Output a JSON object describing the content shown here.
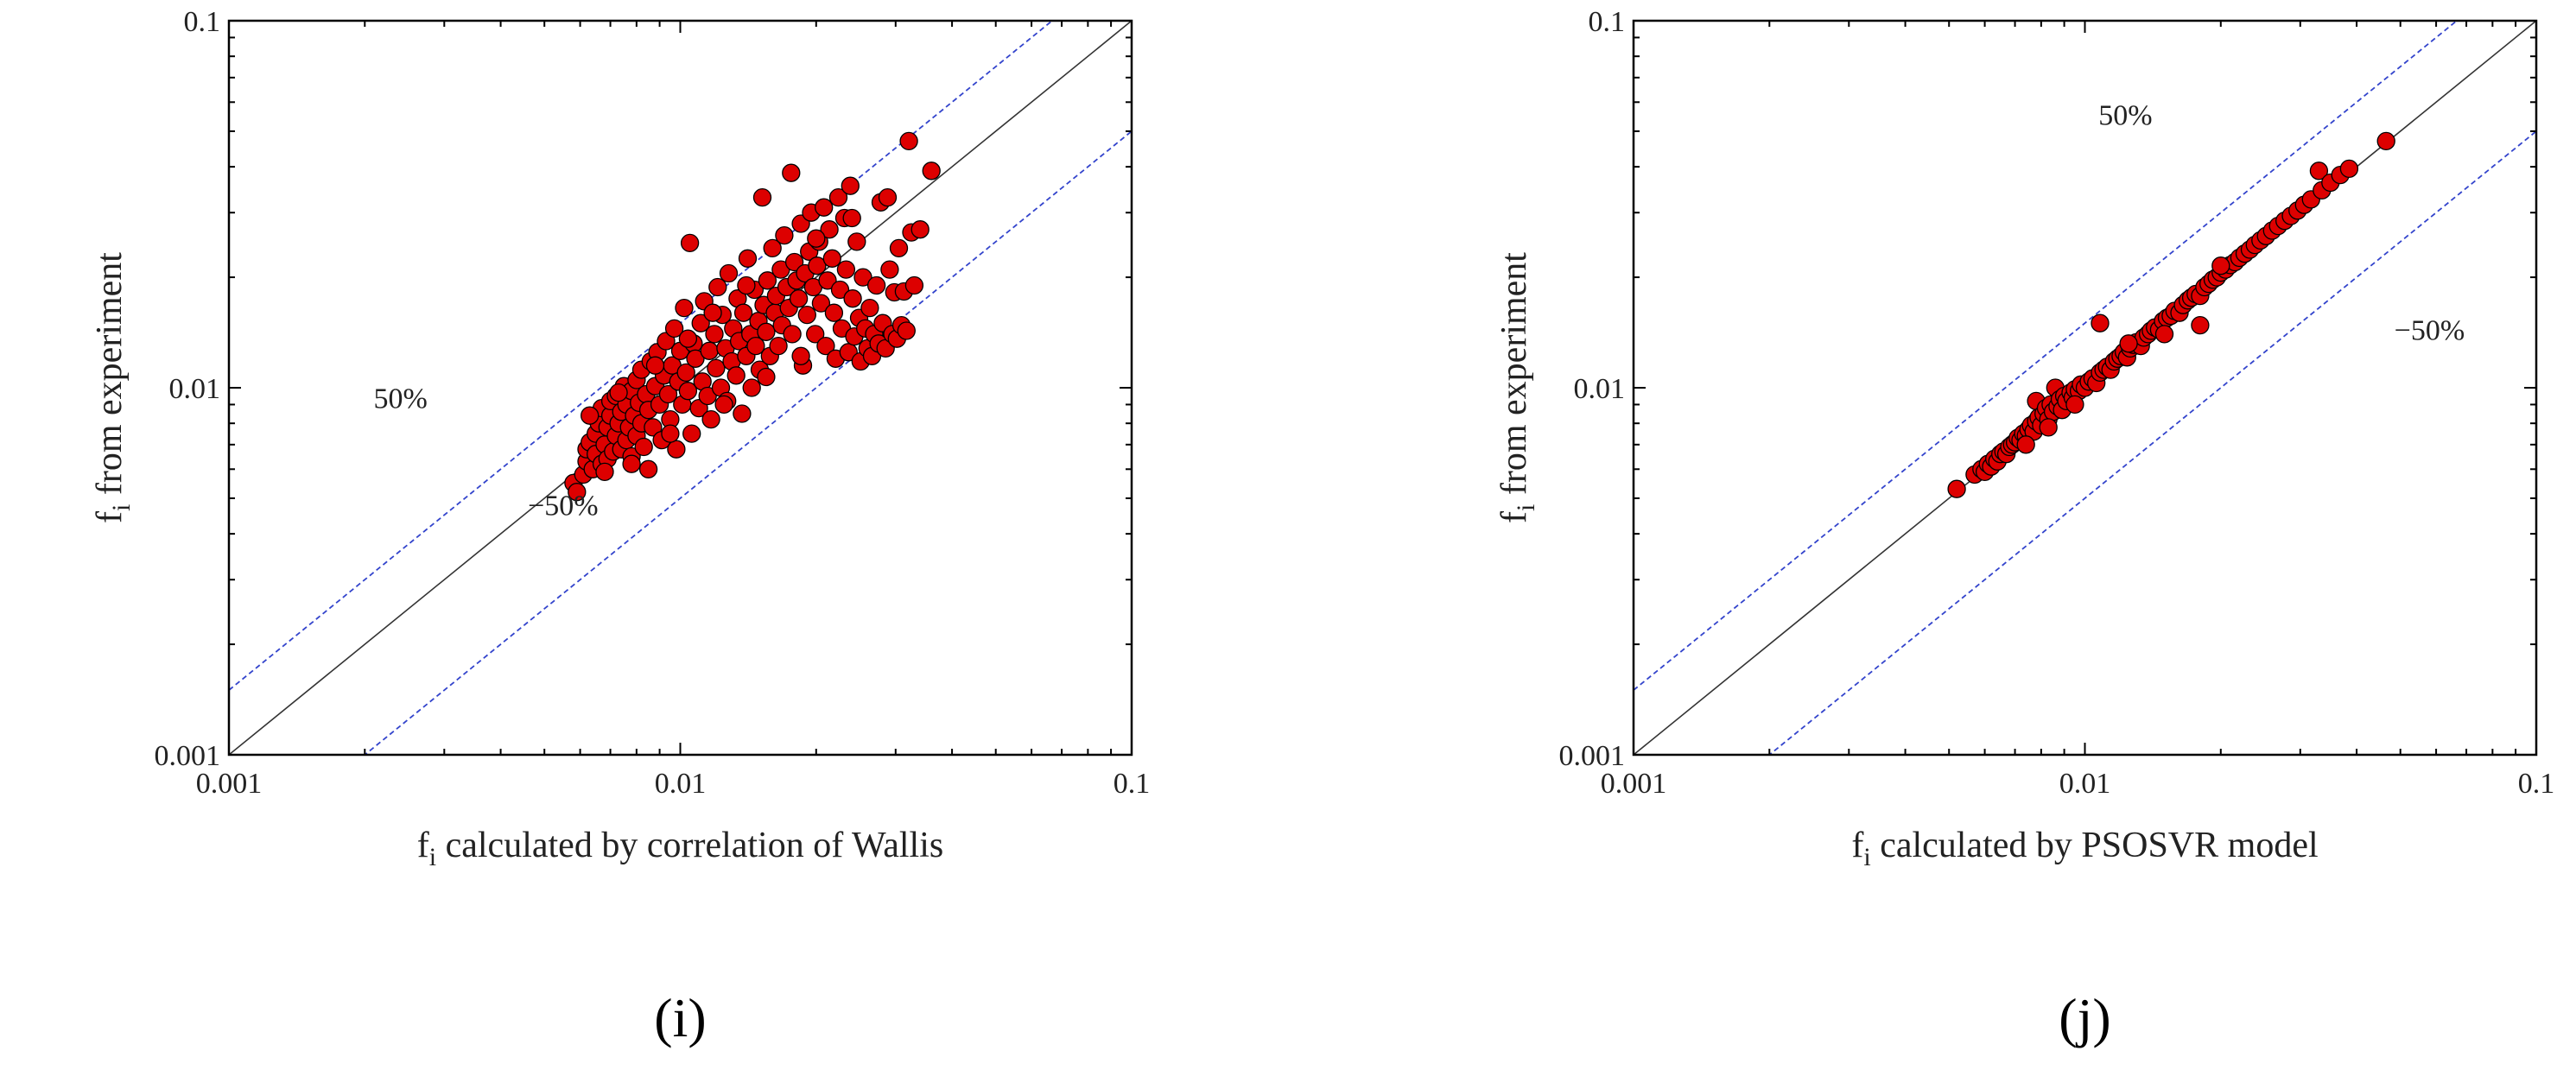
{
  "chart_data": [
    {
      "type": "scatter",
      "panel_label": "(i)",
      "xlabel": {
        "main": "f",
        "sub": "i",
        "rest": " calculated by correlation of Wallis"
      },
      "ylabel": {
        "main": "f",
        "sub": "i",
        "rest": " from experiment"
      },
      "x_scale": "log",
      "y_scale": "log",
      "xlim": [
        0.001,
        0.1
      ],
      "ylim": [
        0.001,
        0.1
      ],
      "x_ticks": [
        "0.001",
        "0.01",
        "0.1"
      ],
      "y_ticks": [
        "0.001",
        "0.01",
        "0.1"
      ],
      "annotations": [
        {
          "text": "50%",
          "x": 0.0024,
          "y": 0.0088
        },
        {
          "text": "−50%",
          "x": 0.0055,
          "y": 0.0045
        }
      ],
      "reference_lines": [
        {
          "name": "y = x",
          "factor": 1.0,
          "color": "#333333",
          "style": "solid"
        },
        {
          "name": "+50%",
          "factor": 1.5,
          "color": "#3344cc",
          "style": "dashed"
        },
        {
          "name": "−50%",
          "factor": 0.5,
          "color": "#3344cc",
          "style": "dashed"
        }
      ],
      "marker_color": "#dd0000",
      "points": [
        [
          0.0058,
          0.0055
        ],
        [
          0.0059,
          0.0052
        ],
        [
          0.0061,
          0.0058
        ],
        [
          0.0062,
          0.0063
        ],
        [
          0.0062,
          0.0068
        ],
        [
          0.0063,
          0.0071
        ],
        [
          0.0064,
          0.006
        ],
        [
          0.0065,
          0.0066
        ],
        [
          0.0065,
          0.0075
        ],
        [
          0.0066,
          0.008
        ],
        [
          0.0067,
          0.0062
        ],
        [
          0.0067,
          0.0088
        ],
        [
          0.0068,
          0.007
        ],
        [
          0.0069,
          0.0064
        ],
        [
          0.0069,
          0.0078
        ],
        [
          0.007,
          0.0084
        ],
        [
          0.007,
          0.0092
        ],
        [
          0.0071,
          0.0067
        ],
        [
          0.0072,
          0.0074
        ],
        [
          0.0072,
          0.0095
        ],
        [
          0.0073,
          0.008
        ],
        [
          0.0074,
          0.0086
        ],
        [
          0.0074,
          0.0068
        ],
        [
          0.0075,
          0.0101
        ],
        [
          0.0076,
          0.0072
        ],
        [
          0.0076,
          0.009
        ],
        [
          0.0077,
          0.0078
        ],
        [
          0.0078,
          0.0098
        ],
        [
          0.0078,
          0.0065
        ],
        [
          0.0079,
          0.0084
        ],
        [
          0.008,
          0.0105
        ],
        [
          0.008,
          0.0074
        ],
        [
          0.0081,
          0.0091
        ],
        [
          0.0082,
          0.008
        ],
        [
          0.0082,
          0.0112
        ],
        [
          0.0083,
          0.0069
        ],
        [
          0.0084,
          0.0096
        ],
        [
          0.0085,
          0.0087
        ],
        [
          0.0085,
          0.006
        ],
        [
          0.0086,
          0.0118
        ],
        [
          0.0087,
          0.0078
        ],
        [
          0.0088,
          0.0101
        ],
        [
          0.0089,
          0.0125
        ],
        [
          0.009,
          0.009
        ],
        [
          0.0091,
          0.0072
        ],
        [
          0.0092,
          0.0108
        ],
        [
          0.0093,
          0.0134
        ],
        [
          0.0094,
          0.0096
        ],
        [
          0.0095,
          0.0082
        ],
        [
          0.0096,
          0.0115
        ],
        [
          0.0097,
          0.0145
        ],
        [
          0.0098,
          0.0068
        ],
        [
          0.0099,
          0.0104
        ],
        [
          0.01,
          0.0126
        ],
        [
          0.0101,
          0.009
        ],
        [
          0.0102,
          0.0165
        ],
        [
          0.0103,
          0.011
        ],
        [
          0.0104,
          0.0098
        ],
        [
          0.0105,
          0.0248
        ],
        [
          0.0106,
          0.0075
        ],
        [
          0.0107,
          0.0132
        ],
        [
          0.0108,
          0.012
        ],
        [
          0.011,
          0.0088
        ],
        [
          0.0111,
          0.015
        ],
        [
          0.0112,
          0.0104
        ],
        [
          0.0113,
          0.0172
        ],
        [
          0.0115,
          0.0095
        ],
        [
          0.0116,
          0.0126
        ],
        [
          0.0117,
          0.0082
        ],
        [
          0.0119,
          0.014
        ],
        [
          0.012,
          0.0113
        ],
        [
          0.0121,
          0.0188
        ],
        [
          0.0123,
          0.01
        ],
        [
          0.0124,
          0.0158
        ],
        [
          0.0126,
          0.0128
        ],
        [
          0.0127,
          0.0092
        ],
        [
          0.0128,
          0.0205
        ],
        [
          0.013,
          0.0118
        ],
        [
          0.0131,
          0.0145
        ],
        [
          0.0133,
          0.0108
        ],
        [
          0.0134,
          0.0175
        ],
        [
          0.0135,
          0.0134
        ],
        [
          0.0137,
          0.0085
        ],
        [
          0.0138,
          0.016
        ],
        [
          0.014,
          0.0122
        ],
        [
          0.0141,
          0.0225
        ],
        [
          0.0143,
          0.014
        ],
        [
          0.0144,
          0.01
        ],
        [
          0.0146,
          0.0185
        ],
        [
          0.0147,
          0.013
        ],
        [
          0.0149,
          0.0152
        ],
        [
          0.015,
          0.0112
        ],
        [
          0.0152,
          0.033
        ],
        [
          0.0153,
          0.0168
        ],
        [
          0.0155,
          0.0142
        ],
        [
          0.0156,
          0.0196
        ],
        [
          0.0158,
          0.0122
        ],
        [
          0.016,
          0.024
        ],
        [
          0.0162,
          0.016
        ],
        [
          0.0163,
          0.0178
        ],
        [
          0.0165,
          0.013
        ],
        [
          0.0167,
          0.021
        ],
        [
          0.0168,
          0.0148
        ],
        [
          0.017,
          0.026
        ],
        [
          0.0172,
          0.0188
        ],
        [
          0.0174,
          0.0165
        ],
        [
          0.0176,
          0.0385
        ],
        [
          0.0177,
          0.014
        ],
        [
          0.0179,
          0.022
        ],
        [
          0.0181,
          0.0196
        ],
        [
          0.0183,
          0.0175
        ],
        [
          0.0185,
          0.028
        ],
        [
          0.0187,
          0.0115
        ],
        [
          0.0189,
          0.0205
        ],
        [
          0.0191,
          0.0158
        ],
        [
          0.0193,
          0.0235
        ],
        [
          0.0195,
          0.03
        ],
        [
          0.0197,
          0.0188
        ],
        [
          0.0199,
          0.014
        ],
        [
          0.0201,
          0.0215
        ],
        [
          0.0203,
          0.025
        ],
        [
          0.0205,
          0.017
        ],
        [
          0.0208,
          0.031
        ],
        [
          0.021,
          0.013
        ],
        [
          0.0212,
          0.0196
        ],
        [
          0.0214,
          0.027
        ],
        [
          0.0217,
          0.0225
        ],
        [
          0.0219,
          0.016
        ],
        [
          0.0221,
          0.012
        ],
        [
          0.0224,
          0.033
        ],
        [
          0.0226,
          0.0185
        ],
        [
          0.0228,
          0.0145
        ],
        [
          0.0231,
          0.029
        ],
        [
          0.0233,
          0.021
        ],
        [
          0.0236,
          0.0125
        ],
        [
          0.0238,
          0.0355
        ],
        [
          0.0241,
          0.0175
        ],
        [
          0.0243,
          0.0138
        ],
        [
          0.0246,
          0.025
        ],
        [
          0.0249,
          0.0155
        ],
        [
          0.0251,
          0.0118
        ],
        [
          0.0254,
          0.02
        ],
        [
          0.0257,
          0.0145
        ],
        [
          0.026,
          0.0128
        ],
        [
          0.0263,
          0.0165
        ],
        [
          0.0266,
          0.0122
        ],
        [
          0.0269,
          0.014
        ],
        [
          0.0272,
          0.019
        ],
        [
          0.0275,
          0.0132
        ],
        [
          0.0278,
          0.032
        ],
        [
          0.0281,
          0.015
        ],
        [
          0.0285,
          0.0128
        ],
        [
          0.0288,
          0.033
        ],
        [
          0.0291,
          0.021
        ],
        [
          0.0295,
          0.014
        ],
        [
          0.0298,
          0.0182
        ],
        [
          0.0302,
          0.0136
        ],
        [
          0.0305,
          0.024
        ],
        [
          0.0309,
          0.0148
        ],
        [
          0.0313,
          0.0183
        ],
        [
          0.0317,
          0.0143
        ],
        [
          0.0321,
          0.047
        ],
        [
          0.0325,
          0.0265
        ],
        [
          0.033,
          0.019
        ],
        [
          0.034,
          0.027
        ],
        [
          0.036,
          0.039
        ],
        [
          0.0155,
          0.0107
        ],
        [
          0.0185,
          0.0122
        ],
        [
          0.0125,
          0.009
        ],
        [
          0.0095,
          0.0075
        ],
        [
          0.0078,
          0.0062
        ],
        [
          0.0068,
          0.0059
        ],
        [
          0.014,
          0.019
        ],
        [
          0.0118,
          0.016
        ],
        [
          0.02,
          0.0255
        ],
        [
          0.024,
          0.029
        ],
        [
          0.0104,
          0.0136
        ],
        [
          0.0088,
          0.0115
        ],
        [
          0.0073,
          0.0097
        ],
        [
          0.0063,
          0.0084
        ]
      ]
    },
    {
      "type": "scatter",
      "panel_label": "(j)",
      "xlabel": {
        "main": "f",
        "sub": "i",
        "rest": " calculated by PSOSVR model"
      },
      "ylabel": {
        "main": "f",
        "sub": "i",
        "rest": " from experiment"
      },
      "x_scale": "log",
      "y_scale": "log",
      "xlim": [
        0.001,
        0.1
      ],
      "ylim": [
        0.001,
        0.1
      ],
      "x_ticks": [
        "0.001",
        "0.01",
        "0.1"
      ],
      "y_ticks": [
        "0.001",
        "0.01",
        "0.1"
      ],
      "annotations": [
        {
          "text": "50%",
          "x": 0.0123,
          "y": 0.052
        },
        {
          "text": "−50%",
          "x": 0.058,
          "y": 0.0135
        }
      ],
      "reference_lines": [
        {
          "name": "y = x",
          "factor": 1.0,
          "color": "#333333",
          "style": "solid"
        },
        {
          "name": "+50%",
          "factor": 1.5,
          "color": "#3344cc",
          "style": "dashed"
        },
        {
          "name": "−50%",
          "factor": 0.5,
          "color": "#3344cc",
          "style": "dashed"
        }
      ],
      "marker_color": "#dd0000",
      "points": [
        [
          0.0052,
          0.0053
        ],
        [
          0.0057,
          0.0058
        ],
        [
          0.0059,
          0.006
        ],
        [
          0.006,
          0.0059
        ],
        [
          0.0061,
          0.0062
        ],
        [
          0.0062,
          0.0061
        ],
        [
          0.0063,
          0.0064
        ],
        [
          0.0064,
          0.0063
        ],
        [
          0.0065,
          0.0066
        ],
        [
          0.0066,
          0.0067
        ],
        [
          0.0067,
          0.0066
        ],
        [
          0.0068,
          0.0069
        ],
        [
          0.0069,
          0.007
        ],
        [
          0.007,
          0.0071
        ],
        [
          0.0071,
          0.0073
        ],
        [
          0.0072,
          0.0072
        ],
        [
          0.0073,
          0.0075
        ],
        [
          0.0074,
          0.0074
        ],
        [
          0.0075,
          0.0077
        ],
        [
          0.0076,
          0.0079
        ],
        [
          0.0077,
          0.0076
        ],
        [
          0.0078,
          0.0081
        ],
        [
          0.0078,
          0.0092
        ],
        [
          0.0079,
          0.0083
        ],
        [
          0.008,
          0.0079
        ],
        [
          0.0081,
          0.0085
        ],
        [
          0.0082,
          0.0088
        ],
        [
          0.0083,
          0.0082
        ],
        [
          0.0084,
          0.009
        ],
        [
          0.0085,
          0.0086
        ],
        [
          0.0086,
          0.01
        ],
        [
          0.0087,
          0.0089
        ],
        [
          0.0088,
          0.0093
        ],
        [
          0.0089,
          0.0087
        ],
        [
          0.009,
          0.0095
        ],
        [
          0.0091,
          0.0092
        ],
        [
          0.0093,
          0.0097
        ],
        [
          0.0094,
          0.0094
        ],
        [
          0.0095,
          0.0099
        ],
        [
          0.0097,
          0.0098
        ],
        [
          0.0098,
          0.0102
        ],
        [
          0.01,
          0.01
        ],
        [
          0.0102,
          0.0104
        ],
        [
          0.0104,
          0.0106
        ],
        [
          0.0106,
          0.0103
        ],
        [
          0.0108,
          0.011
        ],
        [
          0.0108,
          0.015
        ],
        [
          0.011,
          0.0112
        ],
        [
          0.0112,
          0.0114
        ],
        [
          0.0114,
          0.0112
        ],
        [
          0.0116,
          0.0118
        ],
        [
          0.0118,
          0.012
        ],
        [
          0.012,
          0.0122
        ],
        [
          0.0122,
          0.0125
        ],
        [
          0.0124,
          0.0121
        ],
        [
          0.0126,
          0.0128
        ],
        [
          0.0128,
          0.0131
        ],
        [
          0.013,
          0.0133
        ],
        [
          0.0133,
          0.013
        ],
        [
          0.0135,
          0.0137
        ],
        [
          0.0138,
          0.014
        ],
        [
          0.014,
          0.0143
        ],
        [
          0.0143,
          0.0146
        ],
        [
          0.0146,
          0.0144
        ],
        [
          0.0149,
          0.0152
        ],
        [
          0.0152,
          0.0155
        ],
        [
          0.0155,
          0.0157
        ],
        [
          0.0158,
          0.0162
        ],
        [
          0.0162,
          0.016
        ],
        [
          0.0165,
          0.0168
        ],
        [
          0.0169,
          0.0173
        ],
        [
          0.0172,
          0.0176
        ],
        [
          0.0176,
          0.018
        ],
        [
          0.018,
          0.0178
        ],
        [
          0.018,
          0.0148
        ],
        [
          0.0184,
          0.0188
        ],
        [
          0.0188,
          0.0192
        ],
        [
          0.0192,
          0.0197
        ],
        [
          0.0196,
          0.02
        ],
        [
          0.02,
          0.0206
        ],
        [
          0.0205,
          0.021
        ],
        [
          0.021,
          0.0216
        ],
        [
          0.0215,
          0.022
        ],
        [
          0.022,
          0.0226
        ],
        [
          0.0226,
          0.0232
        ],
        [
          0.0232,
          0.0238
        ],
        [
          0.0238,
          0.0245
        ],
        [
          0.0245,
          0.0252
        ],
        [
          0.0252,
          0.0259
        ],
        [
          0.026,
          0.0268
        ],
        [
          0.0268,
          0.0276
        ],
        [
          0.0277,
          0.0285
        ],
        [
          0.0286,
          0.0294
        ],
        [
          0.0296,
          0.0304
        ],
        [
          0.0306,
          0.0315
        ],
        [
          0.0317,
          0.0326
        ],
        [
          0.033,
          0.039
        ],
        [
          0.0335,
          0.0345
        ],
        [
          0.035,
          0.0362
        ],
        [
          0.0368,
          0.038
        ],
        [
          0.0385,
          0.0395
        ],
        [
          0.0465,
          0.047
        ],
        [
          0.02,
          0.0215
        ],
        [
          0.015,
          0.014
        ],
        [
          0.0125,
          0.0132
        ],
        [
          0.0095,
          0.009
        ],
        [
          0.0083,
          0.0078
        ],
        [
          0.0074,
          0.007
        ]
      ]
    }
  ]
}
